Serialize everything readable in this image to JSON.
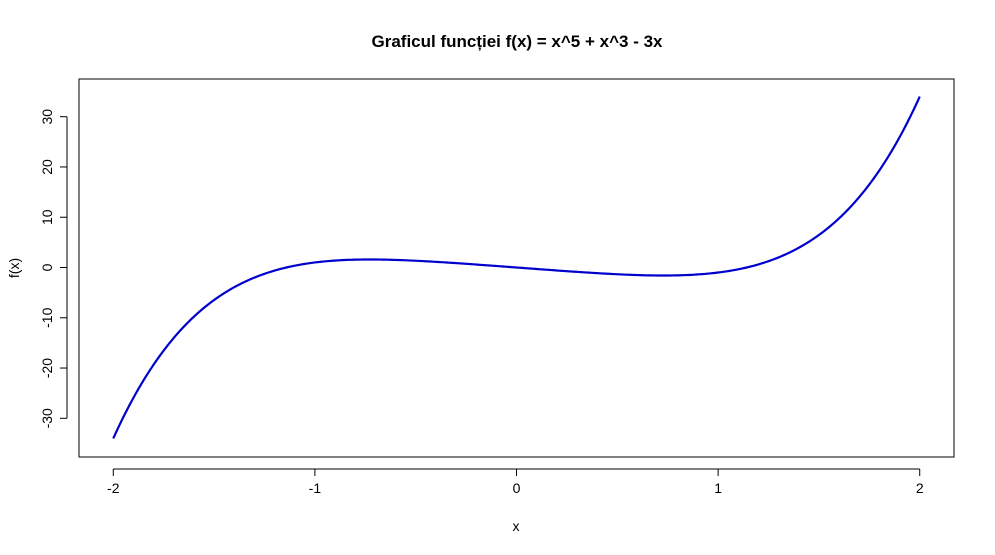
{
  "chart_data": {
    "type": "line",
    "title": "Graficul funcției f(x) = x^5 + x^3 - 3x",
    "xlabel": "x",
    "ylabel": "f(x)",
    "xlim": [
      -2.17,
      2.17
    ],
    "ylim": [
      -37.7,
      37.5
    ],
    "x_ticks": [
      -2,
      -1,
      0,
      1,
      2
    ],
    "y_ticks": [
      -30,
      -20,
      -10,
      0,
      10,
      20,
      30
    ],
    "x_tick_labels": [
      "-2",
      "-1",
      "0",
      "1",
      "2"
    ],
    "y_tick_labels": [
      "-30",
      "-20",
      "-10",
      "0",
      "10",
      "20",
      "30"
    ],
    "grid": false,
    "legend": "none",
    "series": [
      {
        "color": "#0000CD",
        "function": "x^5 + x^3 - 3x",
        "x": [
          -2.0,
          -1.9,
          -1.8,
          -1.7,
          -1.6,
          -1.5,
          -1.4,
          -1.3,
          -1.2,
          -1.1,
          -1.0,
          -0.9,
          -0.8,
          -0.7,
          -0.6,
          -0.5,
          -0.4,
          -0.3,
          -0.2,
          -0.1,
          0.0,
          0.1,
          0.2,
          0.3,
          0.4,
          0.5,
          0.6,
          0.7,
          0.8,
          0.9,
          1.0,
          1.1,
          1.2,
          1.3,
          1.4,
          1.5,
          1.6,
          1.7,
          1.8,
          1.9,
          2.0
        ],
        "y": [
          -34.0,
          -26.0,
          -19.1,
          -14.2,
          -10.2,
          -7.1,
          -4.3,
          -2.6,
          -1.3,
          -0.6,
          1.0,
          1.5,
          1.6,
          1.6,
          1.5,
          1.3,
          1.1,
          0.9,
          0.6,
          0.3,
          0.0,
          -0.3,
          -0.6,
          -0.9,
          -1.1,
          -1.3,
          -1.5,
          -1.6,
          -1.6,
          -1.5,
          -1.0,
          0.6,
          1.3,
          2.6,
          4.3,
          7.1,
          10.2,
          14.2,
          19.1,
          26.0,
          34.0
        ]
      }
    ]
  }
}
